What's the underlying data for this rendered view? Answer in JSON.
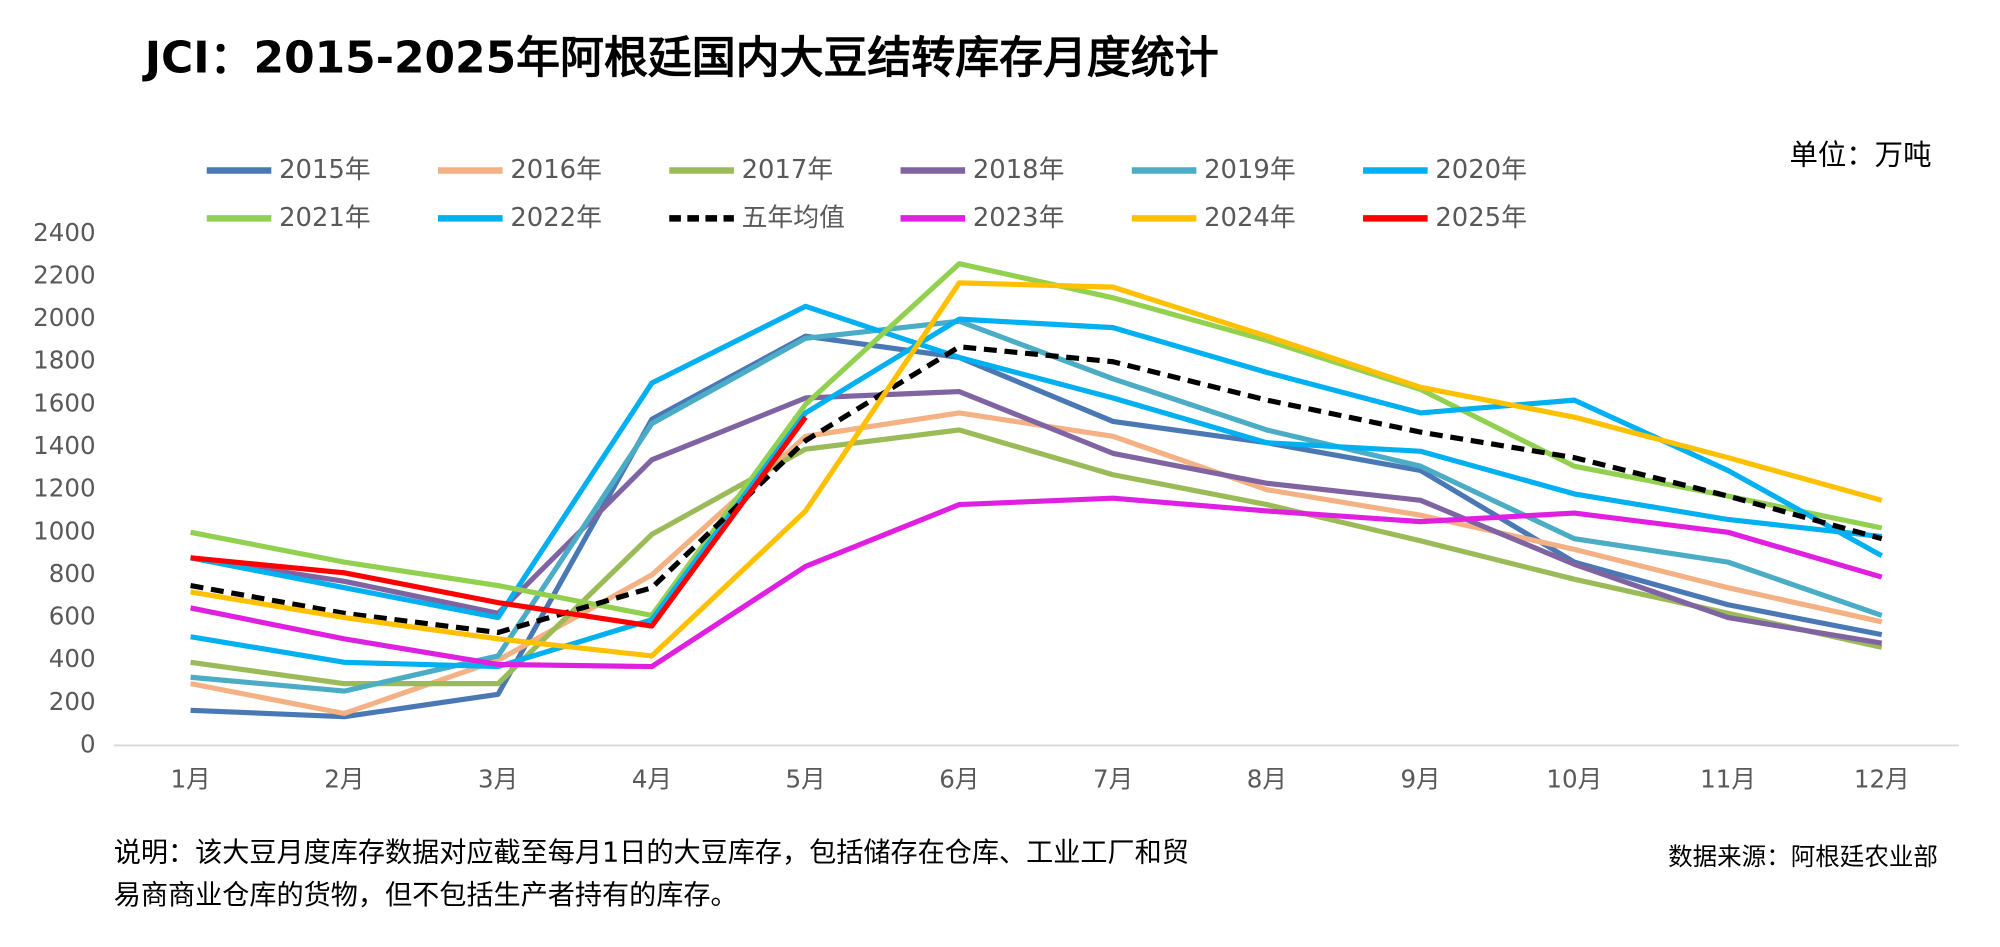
{
  "chart_data": {
    "type": "line",
    "title": "JCI：2015-2025年阿根廷国内大豆结转库存月度统计",
    "unit": "单位：万吨",
    "note": [
      "说明：该大豆月度库存数据对应截至每月1日的大豆库存，包括储存在仓库、工业工厂和贸",
      "易商商业仓库的货物，但不包括生产者持有的库存。"
    ],
    "source": "数据来源：阿根廷农业部",
    "categories": [
      "1月",
      "2月",
      "3月",
      "4月",
      "5月",
      "6月",
      "7月",
      "8月",
      "9月",
      "10月",
      "11月",
      "12月"
    ],
    "ylim": [
      0,
      2400
    ],
    "yticks": [
      0,
      200,
      400,
      600,
      800,
      1000,
      1200,
      1400,
      1600,
      1800,
      2000,
      2200,
      2400
    ],
    "series": [
      {
        "name": "2015年",
        "color": "#4a78b5",
        "values": [
          165,
          135,
          240,
          1530,
          1920,
          1820,
          1520,
          1420,
          1290,
          860,
          660,
          520
        ]
      },
      {
        "name": "2016年",
        "color": "#f4b183",
        "values": [
          290,
          150,
          400,
          800,
          1450,
          1560,
          1450,
          1200,
          1080,
          920,
          740,
          580
        ]
      },
      {
        "name": "2017年",
        "color": "#9bbb59",
        "values": [
          390,
          290,
          290,
          990,
          1390,
          1480,
          1270,
          1130,
          960,
          780,
          620,
          460
        ]
      },
      {
        "name": "2018年",
        "color": "#8064a2",
        "values": [
          880,
          770,
          620,
          1340,
          1630,
          1660,
          1370,
          1230,
          1150,
          850,
          600,
          480
        ]
      },
      {
        "name": "2019年",
        "color": "#4bacc6",
        "values": [
          320,
          255,
          420,
          1510,
          1910,
          1990,
          1720,
          1480,
          1310,
          970,
          860,
          610
        ]
      },
      {
        "name": "2020年",
        "color": "#00b0f0",
        "values": [
          880,
          740,
          600,
          1700,
          2060,
          1820,
          1630,
          1420,
          1380,
          1180,
          1060,
          980
        ]
      },
      {
        "name": "2021年",
        "color": "#92d050",
        "values": [
          1000,
          860,
          750,
          610,
          1600,
          2260,
          2100,
          1900,
          1670,
          1310,
          1170,
          1020
        ]
      },
      {
        "name": "2022年",
        "color": "#00b0f0",
        "values": [
          510,
          390,
          370,
          590,
          1560,
          2000,
          1960,
          1750,
          1560,
          1620,
          1290,
          890
        ]
      },
      {
        "name": "五年均值",
        "color": "#000000",
        "dashed": true,
        "values": [
          750,
          620,
          530,
          740,
          1430,
          1870,
          1800,
          1620,
          1470,
          1350,
          1170,
          970
        ]
      },
      {
        "name": "2023年",
        "color": "#e020e0",
        "values": [
          645,
          500,
          380,
          370,
          840,
          1130,
          1160,
          1100,
          1050,
          1090,
          1000,
          790
        ]
      },
      {
        "name": "2024年",
        "color": "#ffc000",
        "values": [
          720,
          600,
          500,
          420,
          1100,
          2170,
          2150,
          1920,
          1680,
          1540,
          1350,
          1150
        ]
      },
      {
        "name": "2025年",
        "color": "#ff0000",
        "values": [
          880,
          810,
          670,
          560,
          1540,
          null,
          null,
          null,
          null,
          null,
          null,
          null
        ]
      }
    ]
  }
}
